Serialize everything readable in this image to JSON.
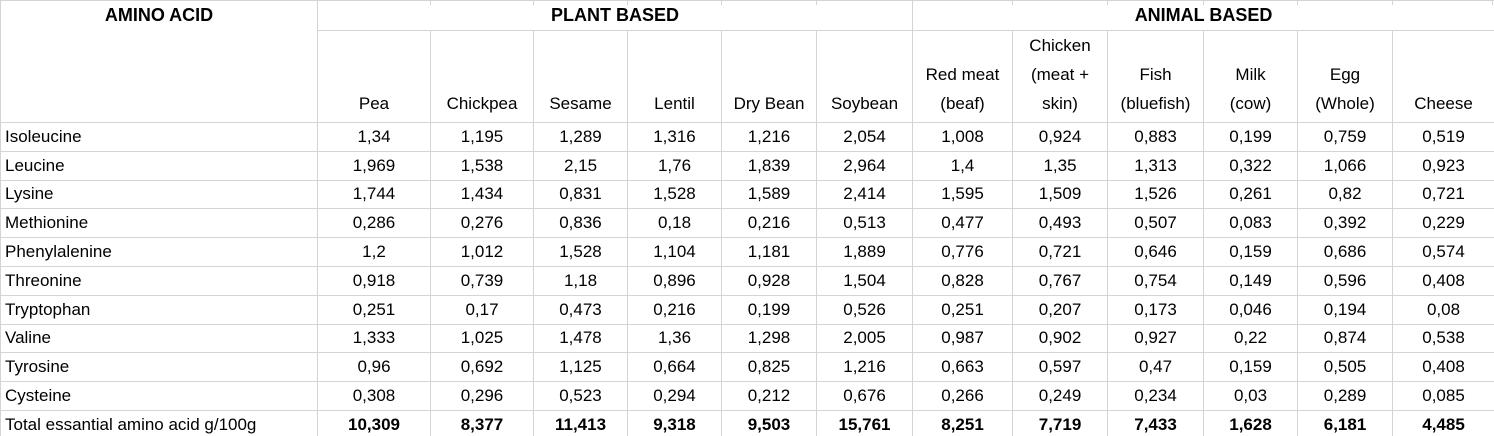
{
  "table": {
    "corner_header": "AMINO ACID",
    "groups": [
      {
        "label": "PLANT BASED",
        "span": 6
      },
      {
        "label": "ANIMAL BASED",
        "span": 6
      }
    ],
    "columns": [
      "Pea",
      "Chickpea",
      "Sesame",
      "Lentil",
      "Dry Bean",
      "Soybean",
      "Red meat\n(beaf)",
      "Chicken\n(meat +\nskin)",
      "Fish\n(bluefish)",
      "Milk\n(cow)",
      "Egg\n(Whole)",
      "Cheese"
    ],
    "rows": [
      {
        "label": "Isoleucine",
        "values": [
          "1,34",
          "1,195",
          "1,289",
          "1,316",
          "1,216",
          "2,054",
          "1,008",
          "0,924",
          "0,883",
          "0,199",
          "0,759",
          "0,519"
        ]
      },
      {
        "label": "Leucine",
        "values": [
          "1,969",
          "1,538",
          "2,15",
          "1,76",
          "1,839",
          "2,964",
          "1,4",
          "1,35",
          "1,313",
          "0,322",
          "1,066",
          "0,923"
        ]
      },
      {
        "label": "Lysine",
        "values": [
          "1,744",
          "1,434",
          "0,831",
          "1,528",
          "1,589",
          "2,414",
          "1,595",
          "1,509",
          "1,526",
          "0,261",
          "0,82",
          "0,721"
        ]
      },
      {
        "label": "Methionine",
        "values": [
          "0,286",
          "0,276",
          "0,836",
          "0,18",
          "0,216",
          "0,513",
          "0,477",
          "0,493",
          "0,507",
          "0,083",
          "0,392",
          "0,229"
        ]
      },
      {
        "label": "Phenylalenine",
        "values": [
          "1,2",
          "1,012",
          "1,528",
          "1,104",
          "1,181",
          "1,889",
          "0,776",
          "0,721",
          "0,646",
          "0,159",
          "0,686",
          "0,574"
        ]
      },
      {
        "label": "Threonine",
        "values": [
          "0,918",
          "0,739",
          "1,18",
          "0,896",
          "0,928",
          "1,504",
          "0,828",
          "0,767",
          "0,754",
          "0,149",
          "0,596",
          "0,408"
        ]
      },
      {
        "label": "Tryptophan",
        "values": [
          "0,251",
          "0,17",
          "0,473",
          "0,216",
          "0,199",
          "0,526",
          "0,251",
          "0,207",
          "0,173",
          "0,046",
          "0,194",
          "0,08"
        ]
      },
      {
        "label": "Valine",
        "values": [
          "1,333",
          "1,025",
          "1,478",
          "1,36",
          "1,298",
          "2,005",
          "0,987",
          "0,902",
          "0,927",
          "0,22",
          "0,874",
          "0,538"
        ]
      },
      {
        "label": "Tyrosine",
        "values": [
          "0,96",
          "0,692",
          "1,125",
          "0,664",
          "0,825",
          "1,216",
          "0,663",
          "0,597",
          "0,47",
          "0,159",
          "0,505",
          "0,408"
        ]
      },
      {
        "label": "Cysteine",
        "values": [
          "0,308",
          "0,296",
          "0,523",
          "0,294",
          "0,212",
          "0,676",
          "0,266",
          "0,249",
          "0,234",
          "0,03",
          "0,289",
          "0,085"
        ]
      }
    ],
    "total_row": {
      "label": "Total essantial amino acid g/100g",
      "values": [
        "10,309",
        "8,377",
        "11,413",
        "9,318",
        "9,503",
        "15,761",
        "8,251",
        "7,719",
        "7,433",
        "1,628",
        "6,181",
        "4,485"
      ]
    }
  },
  "colors": {
    "grid": "#d4d4d4",
    "text": "#000000",
    "background": "#ffffff"
  }
}
